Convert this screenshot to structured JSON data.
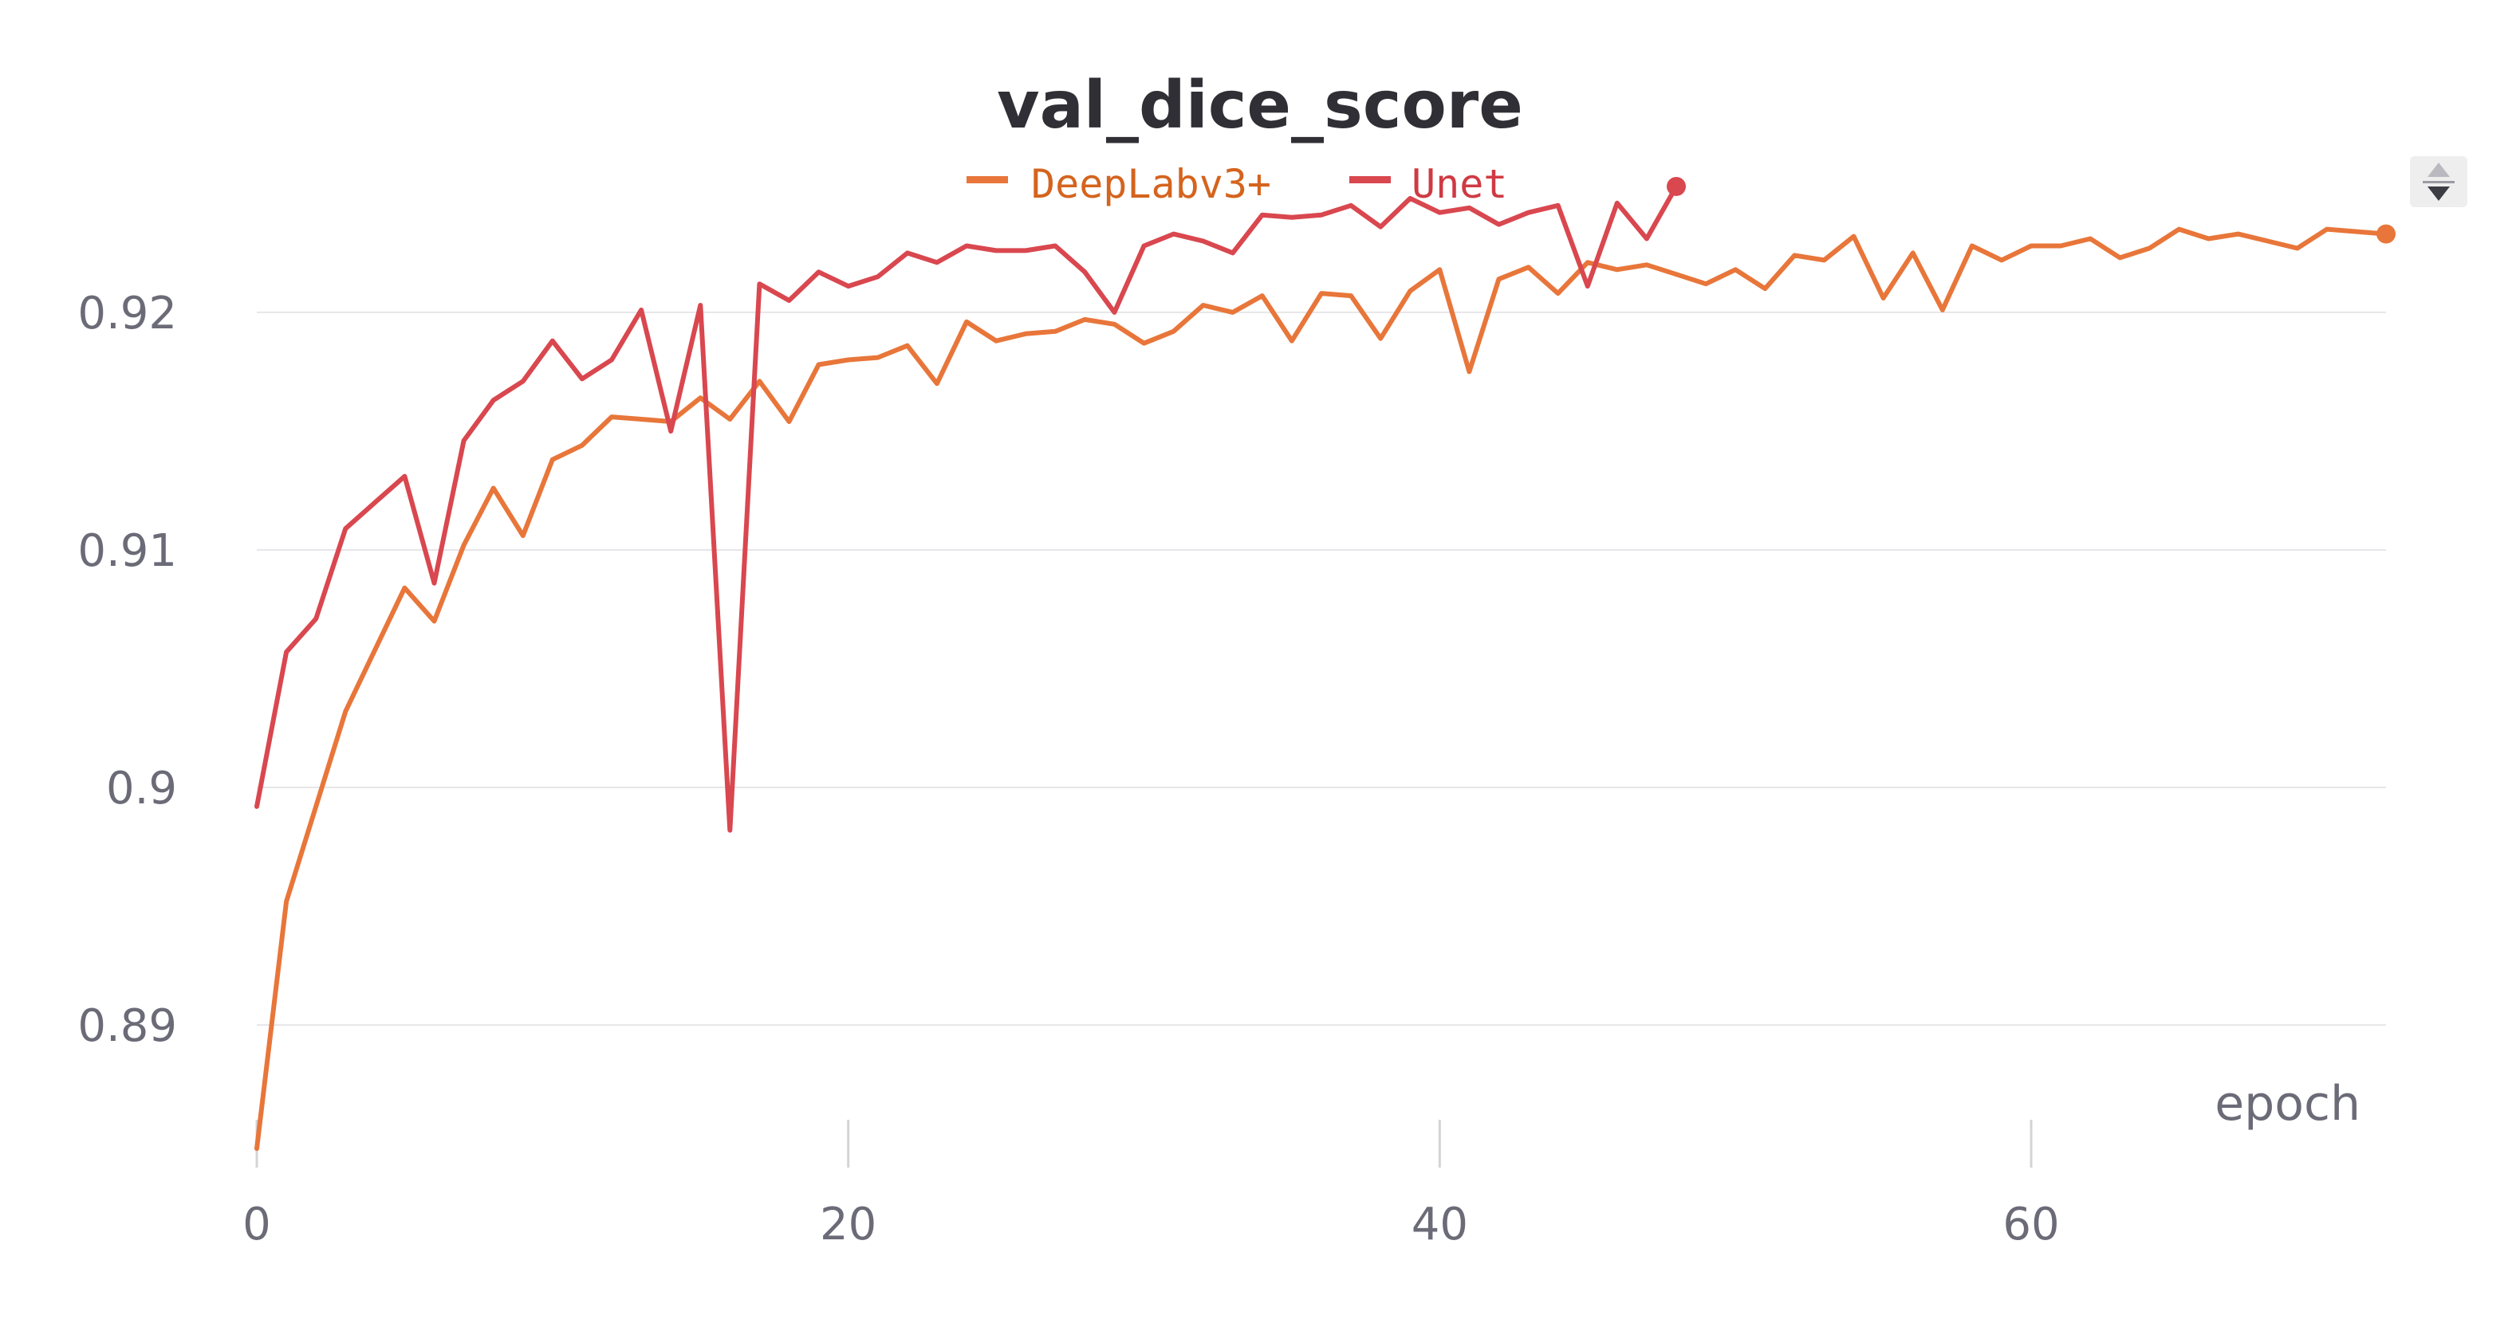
{
  "chart_data": {
    "type": "line",
    "title": "val_dice_score",
    "xlabel": "epoch",
    "ylabel": "",
    "xlim": [
      0,
      72
    ],
    "ylim": [
      0.8845,
      0.9255
    ],
    "x_ticks": [
      0,
      20,
      40,
      60
    ],
    "y_ticks": [
      0.89,
      0.9,
      0.91,
      0.92
    ],
    "y_tick_labels": [
      "0.89",
      "0.9",
      "0.91",
      "0.92"
    ],
    "grid": true,
    "legend_position": "top-center",
    "series": [
      {
        "name": "DeepLabv3+",
        "color": "#e8763a",
        "legend_text_color": "#d4641e",
        "x": [
          0,
          1,
          2,
          3,
          4,
          5,
          6,
          7,
          8,
          9,
          10,
          11,
          12,
          13,
          14,
          15,
          16,
          17,
          18,
          19,
          20,
          21,
          22,
          23,
          24,
          25,
          26,
          27,
          28,
          29,
          30,
          31,
          32,
          33,
          34,
          35,
          36,
          37,
          38,
          39,
          40,
          41,
          42,
          43,
          44,
          45,
          46,
          47,
          48,
          49,
          50,
          51,
          52,
          53,
          54,
          55,
          56,
          57,
          58,
          59,
          60,
          61,
          62,
          63,
          64,
          65,
          66,
          67,
          68,
          69,
          70,
          71,
          72
        ],
        "values": [
          0.8848,
          0.8952,
          0.8992,
          0.9032,
          0.9058,
          0.9084,
          0.907,
          0.9102,
          0.9126,
          0.9106,
          0.9138,
          0.9144,
          0.9156,
          0.9155,
          0.9154,
          0.9164,
          0.9155,
          0.9171,
          0.9154,
          0.9178,
          0.918,
          0.9181,
          0.9186,
          0.917,
          0.9196,
          0.9188,
          0.9191,
          0.9192,
          0.9197,
          0.9195,
          0.9187,
          0.9192,
          0.9203,
          0.92,
          0.9207,
          0.9188,
          0.9208,
          0.9207,
          0.9189,
          0.9209,
          0.9218,
          0.9175,
          0.9214,
          0.9219,
          0.9208,
          0.9221,
          0.9218,
          0.922,
          0.9216,
          0.9212,
          0.9218,
          0.921,
          0.9224,
          0.9222,
          0.9232,
          0.9206,
          0.9225,
          0.9201,
          0.9228,
          0.9222,
          0.9228,
          0.9228,
          0.9231,
          0.9223,
          0.9227,
          0.9235,
          0.9231,
          0.9233,
          0.923,
          0.9227,
          0.9235,
          0.9234,
          0.9233
        ]
      },
      {
        "name": "Unet",
        "color": "#d9474f",
        "legend_text_color": "#cf3a43",
        "x": [
          0,
          1,
          2,
          3,
          4,
          5,
          6,
          7,
          8,
          9,
          10,
          11,
          12,
          13,
          14,
          15,
          16,
          17,
          18,
          19,
          20,
          21,
          22,
          23,
          24,
          25,
          26,
          27,
          28,
          29,
          30,
          31,
          32,
          33,
          34,
          35,
          36,
          37,
          38,
          39,
          40,
          41,
          42,
          43,
          44,
          45,
          46,
          47,
          48
        ],
        "values": [
          0.8992,
          0.9057,
          0.9071,
          0.9109,
          0.912,
          0.9131,
          0.9086,
          0.9146,
          0.9163,
          0.9171,
          0.9188,
          0.9172,
          0.918,
          0.9201,
          0.915,
          0.9203,
          0.8982,
          0.9212,
          0.9205,
          0.9217,
          0.9211,
          0.9215,
          0.9225,
          0.9221,
          0.9228,
          0.9226,
          0.9226,
          0.9228,
          0.9217,
          0.92,
          0.9228,
          0.9233,
          0.923,
          0.9225,
          0.9241,
          0.924,
          0.9241,
          0.9245,
          0.9236,
          0.9248,
          0.9242,
          0.9244,
          0.9237,
          0.9242,
          0.9245,
          0.9211,
          0.9246,
          0.9231,
          0.9253
        ]
      }
    ]
  }
}
